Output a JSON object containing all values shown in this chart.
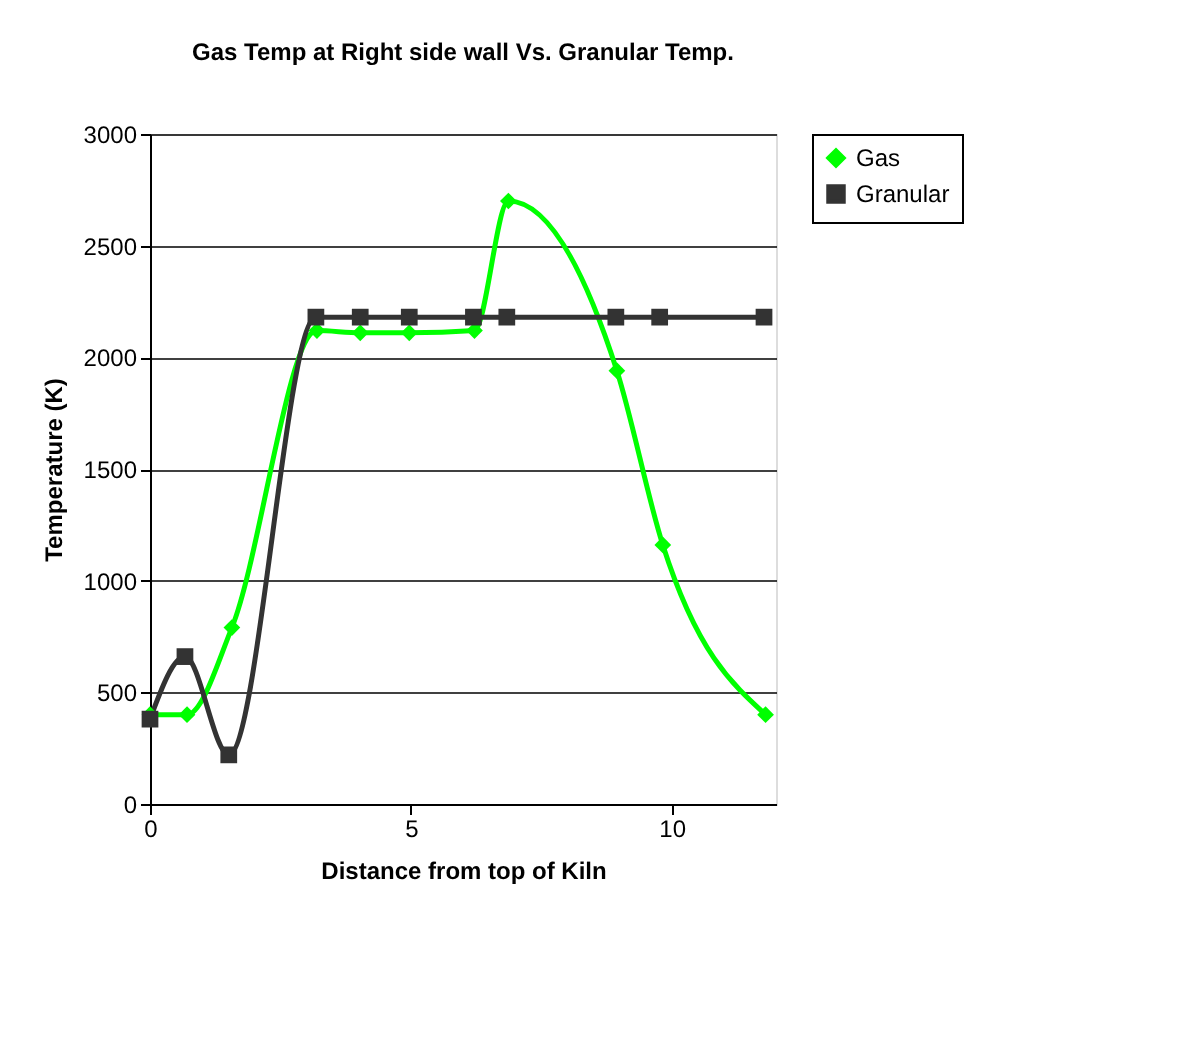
{
  "chart_data": {
    "type": "line",
    "title": "Gas Temp at Right side wall Vs. Granular Temp.",
    "xlabel": "Distance from top of Kiln",
    "ylabel": "Temperature (K)",
    "xlim": [
      0,
      12
    ],
    "xticks": [
      0,
      5,
      10
    ],
    "ylim": [
      0,
      3000
    ],
    "yticks": [
      0,
      500,
      1000,
      1500,
      2000,
      2500,
      3000
    ],
    "grid": "y",
    "legend": "right",
    "line_style": "solid",
    "series": [
      {
        "name": "Gas",
        "color": "#00ff00",
        "marker": "diamond",
        "x": [
          0,
          0.71,
          1.57,
          3.2,
          4.03,
          4.97,
          6.22,
          6.87,
          8.95,
          9.83,
          11.8
        ],
        "values": [
          400,
          400,
          790,
          2120,
          2110,
          2110,
          2120,
          2700,
          1940,
          1160,
          400
        ]
      },
      {
        "name": "Granular",
        "color": "#333333",
        "marker": "square",
        "x": [
          0,
          0.67,
          1.51,
          3.18,
          4.03,
          4.97,
          6.2,
          6.84,
          8.93,
          9.77,
          11.77
        ],
        "values": [
          380,
          660,
          220,
          2180,
          2180,
          2180,
          2180,
          2180,
          2180,
          2180,
          2180
        ]
      }
    ]
  }
}
